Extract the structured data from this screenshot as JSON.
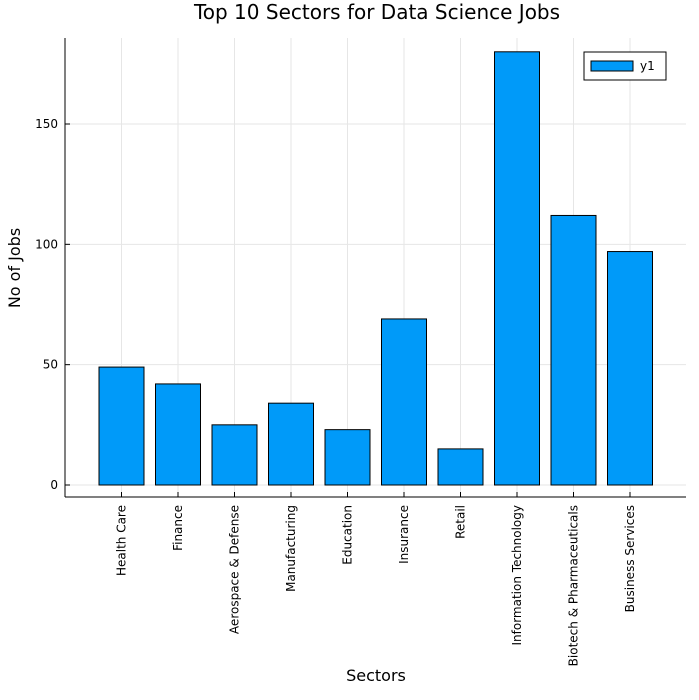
{
  "chart_data": {
    "type": "bar",
    "title": "Top 10 Sectors for Data Science Jobs",
    "xlabel": "Sectors",
    "ylabel": "No of Jobs",
    "categories": [
      "Health Care",
      "Finance",
      "Aerospace & Defense",
      "Manufacturing",
      "Education",
      "Insurance",
      "Retail",
      "Information Technology",
      "Biotech & Pharmaceuticals",
      "Business Services"
    ],
    "series": [
      {
        "name": "y1",
        "values": [
          49,
          42,
          25,
          34,
          23,
          69,
          15,
          180,
          112,
          97
        ],
        "color": "#009af9"
      }
    ],
    "ylim": [
      -5,
      185
    ],
    "yticks": [
      0,
      50,
      100,
      150
    ],
    "grid": true,
    "legend_position": "top-right"
  }
}
